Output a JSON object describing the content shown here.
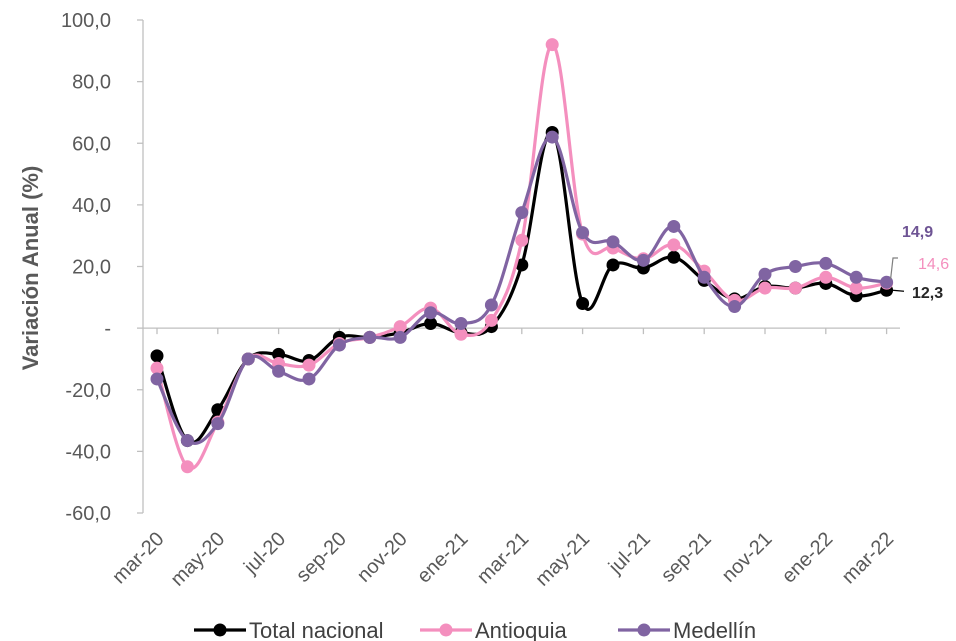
{
  "chart_data": {
    "type": "line",
    "title": "",
    "xlabel": "",
    "ylabel": "Variación Anual (%)",
    "ylim": [
      -60,
      100
    ],
    "yticks": [
      {
        "value": 100,
        "label": "100,0"
      },
      {
        "value": 80,
        "label": "80,0"
      },
      {
        "value": 60,
        "label": "60,0"
      },
      {
        "value": 40,
        "label": "40,0"
      },
      {
        "value": 20,
        "label": "20,0"
      },
      {
        "value": 0,
        "label": "-"
      },
      {
        "value": -20,
        "label": "-20,0"
      },
      {
        "value": -40,
        "label": "-40,0"
      },
      {
        "value": -60,
        "label": "-60,0"
      }
    ],
    "categories": [
      "mar-20",
      "abr-20",
      "may-20",
      "jun-20",
      "jul-20",
      "ago-20",
      "sep-20",
      "oct-20",
      "nov-20",
      "dic-20",
      "ene-21",
      "feb-21",
      "mar-21",
      "abr-21",
      "may-21",
      "jun-21",
      "jul-21",
      "ago-21",
      "sep-21",
      "oct-21",
      "nov-21",
      "dic-21",
      "ene-22",
      "feb-22",
      "mar-22"
    ],
    "tick_labels": [
      "mar-20",
      "may-20",
      "jul-20",
      "sep-20",
      "nov-20",
      "ene-21",
      "mar-21",
      "may-21",
      "jul-21",
      "sep-21",
      "nov-21",
      "ene-22",
      "mar-22"
    ],
    "grid": false,
    "legend_position": "bottom",
    "series": [
      {
        "name": "Total nacional",
        "color": "#000000",
        "values": [
          -9.0,
          -36.5,
          -26.5,
          -10.0,
          -8.5,
          -10.5,
          -3.0,
          -3.0,
          -1.5,
          1.5,
          -1.5,
          0.5,
          20.5,
          63.5,
          8.0,
          20.5,
          19.5,
          23.0,
          15.5,
          9.5,
          13.5,
          13.0,
          14.5,
          10.5,
          12.3
        ],
        "end_label": "12,3",
        "end_label_color": "#262626"
      },
      {
        "name": "Antioquia",
        "color": "#F48FBE",
        "values": [
          -13.0,
          -45.0,
          -30.5,
          -10.0,
          -11.5,
          -12.0,
          -5.0,
          -3.0,
          0.5,
          6.5,
          -2.0,
          2.5,
          28.5,
          92.0,
          30.5,
          26.0,
          22.5,
          27.0,
          18.5,
          9.0,
          13.0,
          13.0,
          16.5,
          13.0,
          14.6
        ],
        "end_label": "14,6",
        "end_label_color": "#F48FBE"
      },
      {
        "name": "Medellín",
        "color": "#8064A2",
        "values": [
          -16.5,
          -36.5,
          -31.0,
          -10.0,
          -14.0,
          -16.5,
          -5.5,
          -3.0,
          -3.0,
          5.0,
          1.5,
          7.5,
          37.5,
          62.0,
          31.0,
          28.0,
          22.0,
          33.0,
          16.5,
          7.0,
          17.5,
          20.0,
          21.0,
          16.5,
          14.9
        ],
        "end_label": "14,9",
        "end_label_color": "#6E5494"
      }
    ]
  }
}
